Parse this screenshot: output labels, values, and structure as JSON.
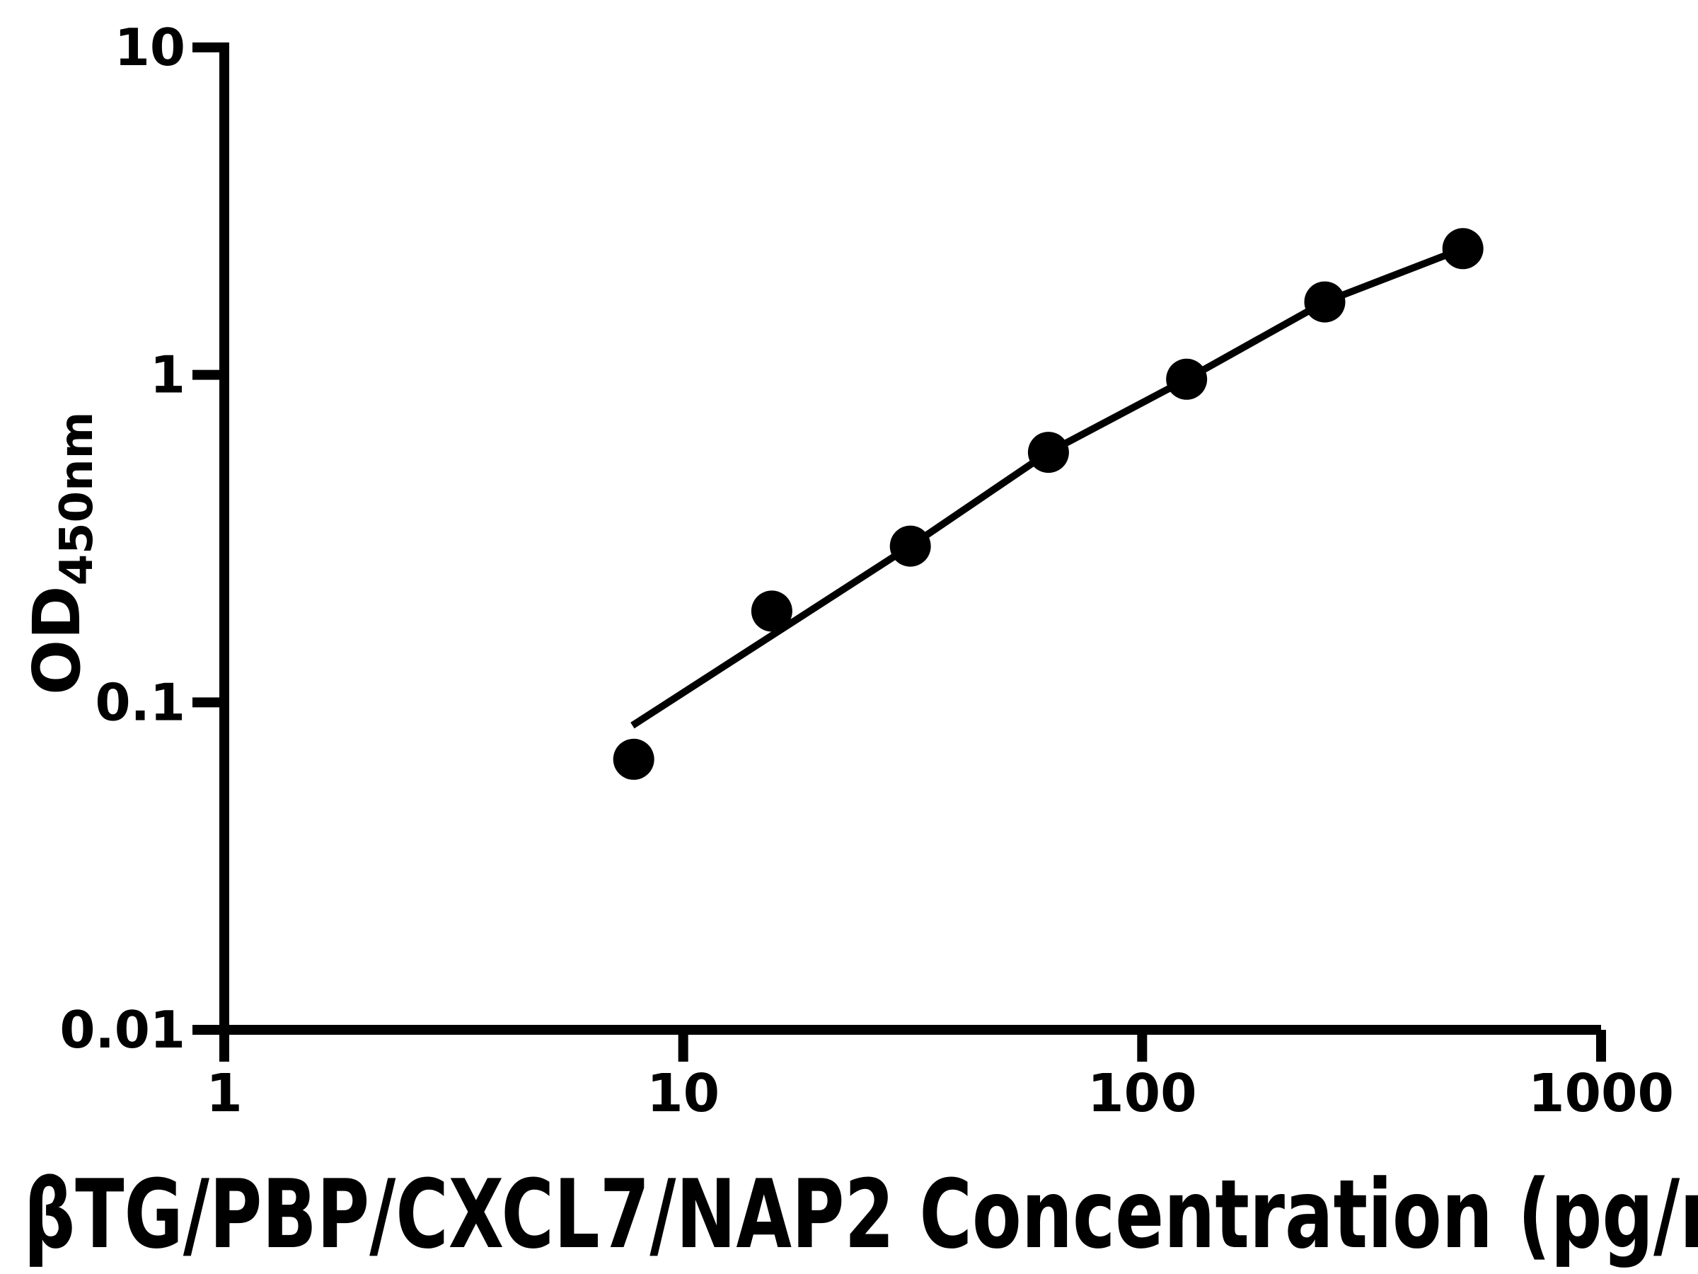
{
  "figure": {
    "background_color": "#ffffff",
    "ink_color": "#000000"
  },
  "chart_data": {
    "type": "scatter",
    "title": "",
    "xlabel_visible": "R βTG/PBP/CXCL7/NAP2 Concentration (pg/m",
    "ylabel_main": "OD",
    "ylabel_sub": "450nm",
    "x_scale": "log",
    "y_scale": "log",
    "xlim": [
      1,
      1000
    ],
    "ylim": [
      0.01,
      10
    ],
    "grid": false,
    "legend": false,
    "x_ticks": [
      {
        "value": 1,
        "label": "1"
      },
      {
        "value": 10,
        "label": "10"
      },
      {
        "value": 100,
        "label": "100"
      },
      {
        "value": 1000,
        "label": "1000"
      }
    ],
    "y_ticks": [
      {
        "value": 0.01,
        "label": "0.01"
      },
      {
        "value": 0.1,
        "label": "0.1"
      },
      {
        "value": 1,
        "label": "1"
      },
      {
        "value": 10,
        "label": "10"
      }
    ],
    "series": [
      {
        "name": "standard-curve-points",
        "marker": "filled-circle",
        "color": "#000000",
        "points": [
          {
            "x": 7.8,
            "y": 0.067
          },
          {
            "x": 15.6,
            "y": 0.19
          },
          {
            "x": 31.25,
            "y": 0.3
          },
          {
            "x": 62.5,
            "y": 0.58
          },
          {
            "x": 125,
            "y": 0.97
          },
          {
            "x": 250,
            "y": 1.67
          },
          {
            "x": 500,
            "y": 2.43
          }
        ]
      }
    ],
    "fit_line": {
      "name": "fitted-standard-curve",
      "color": "#000000",
      "vertices": [
        {
          "x": 7.75,
          "y": 0.085
        },
        {
          "x": 31.25,
          "y": 0.3
        },
        {
          "x": 62.5,
          "y": 0.58
        },
        {
          "x": 125,
          "y": 0.97
        },
        {
          "x": 250,
          "y": 1.67
        },
        {
          "x": 500,
          "y": 2.43
        }
      ]
    }
  }
}
